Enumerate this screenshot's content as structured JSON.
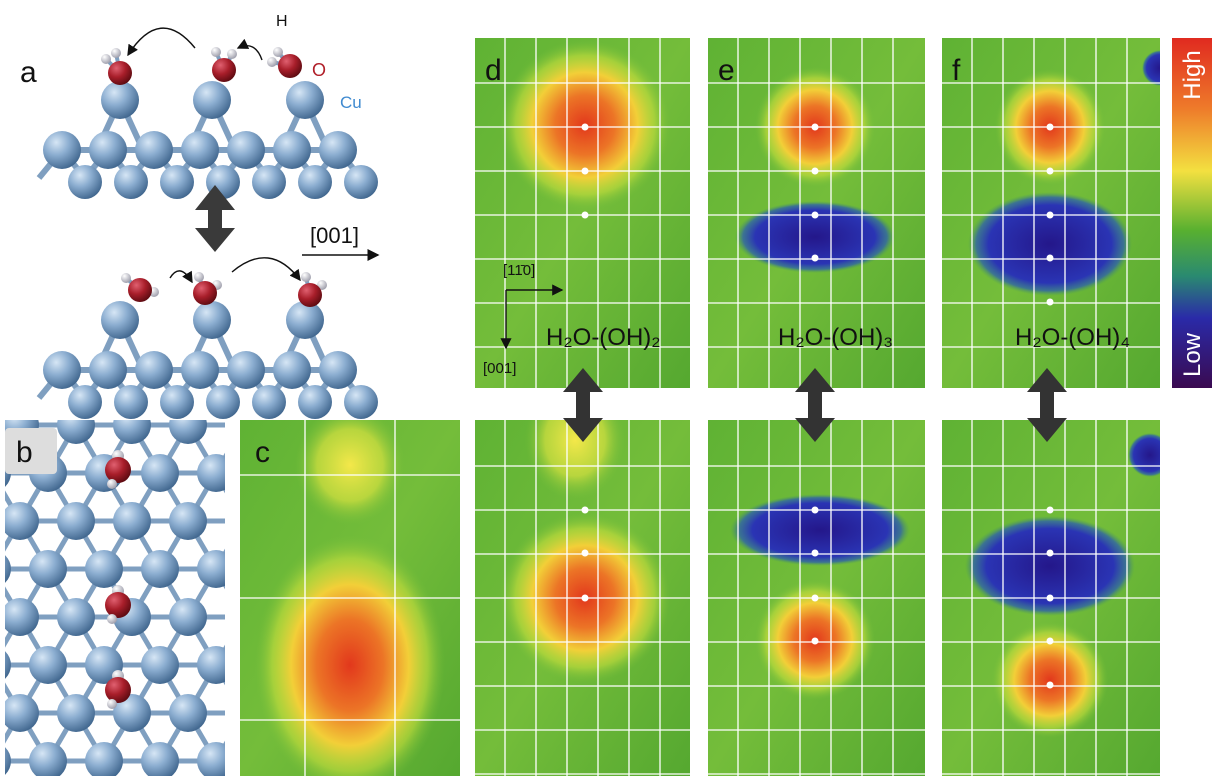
{
  "panels": {
    "a": {
      "label": "a",
      "atoms": {
        "h": "H",
        "o": "O",
        "cu": "Cu"
      },
      "direction": "[001]"
    },
    "b": {
      "label": "b"
    },
    "c": {
      "label": "c"
    },
    "d": {
      "label": "d",
      "formula": "H₂O-(OH)₂",
      "axes": {
        "horizontal": "[11̄0]",
        "vertical": "[001]"
      }
    },
    "e": {
      "label": "e",
      "formula": "H₂O-(OH)₃"
    },
    "f": {
      "label": "f",
      "formula": "H₂O-(OH)₄"
    }
  },
  "colorbar": {
    "high": "High",
    "low": "Low"
  }
}
